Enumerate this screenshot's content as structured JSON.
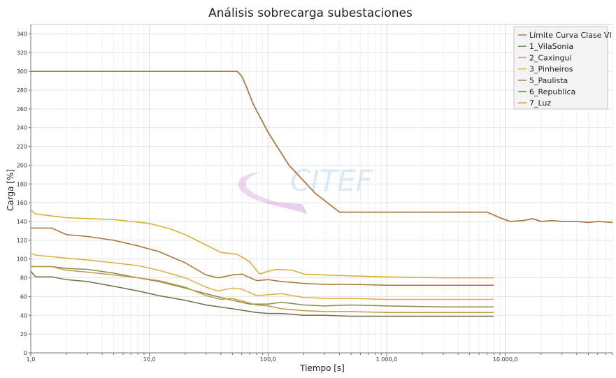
{
  "chart_data": {
    "type": "line",
    "title": "Análisis sobrecarga subestaciones",
    "xlabel": "Tiempo [s]",
    "ylabel": "Carga [%]",
    "x_scale": "log",
    "xlim": [
      1,
      80000
    ],
    "ylim": [
      0,
      350
    ],
    "x_ticks": [
      1,
      10,
      100,
      1000,
      10000
    ],
    "x_tick_labels": [
      "1,0",
      "10,0",
      "100,0",
      "1.000,0",
      "10.000,0"
    ],
    "y_ticks": [
      0,
      20,
      40,
      60,
      80,
      100,
      120,
      140,
      160,
      180,
      200,
      220,
      240,
      260,
      280,
      300,
      320,
      340
    ],
    "grid": true,
    "legend_position": "top-right",
    "watermark": "CITEF",
    "series": [
      {
        "name": "Límite Curva Clase VI",
        "color": "#b07a45",
        "points": [
          [
            1,
            300
          ],
          [
            5,
            300
          ],
          [
            20,
            300
          ],
          [
            55,
            300
          ],
          [
            60,
            295
          ],
          [
            65,
            285
          ],
          [
            75,
            265
          ],
          [
            100,
            235
          ],
          [
            150,
            200
          ],
          [
            250,
            170
          ],
          [
            400,
            150
          ],
          [
            1000,
            150
          ],
          [
            3000,
            150
          ],
          [
            7000,
            150
          ],
          [
            9000,
            144
          ],
          [
            11000,
            140
          ],
          [
            14000,
            141
          ],
          [
            17000,
            143
          ],
          [
            20000,
            140
          ],
          [
            25000,
            141
          ],
          [
            30000,
            140
          ],
          [
            40000,
            140
          ],
          [
            50000,
            139
          ],
          [
            60000,
            140
          ],
          [
            80000,
            139
          ]
        ]
      },
      {
        "name": "1_VilaSonia",
        "color": "#8a8a4e",
        "points": [
          [
            1,
            92
          ],
          [
            1.5,
            92
          ],
          [
            2,
            90
          ],
          [
            3,
            89
          ],
          [
            5,
            85
          ],
          [
            8,
            80
          ],
          [
            12,
            76
          ],
          [
            20,
            69
          ],
          [
            30,
            63
          ],
          [
            50,
            56
          ],
          [
            70,
            52
          ],
          [
            100,
            52
          ],
          [
            130,
            54
          ],
          [
            200,
            51
          ],
          [
            300,
            50
          ],
          [
            500,
            51
          ],
          [
            1000,
            50
          ],
          [
            3000,
            49
          ],
          [
            8000,
            49
          ]
        ]
      },
      {
        "name": "2_Caxingui",
        "color": "#d7ab2b",
        "points": [
          [
            1,
            152
          ],
          [
            1.1,
            148
          ],
          [
            2,
            144
          ],
          [
            5,
            142
          ],
          [
            10,
            138
          ],
          [
            15,
            132
          ],
          [
            20,
            126
          ],
          [
            30,
            115
          ],
          [
            40,
            107
          ],
          [
            55,
            105
          ],
          [
            70,
            97
          ],
          [
            85,
            84
          ],
          [
            100,
            87
          ],
          [
            120,
            89
          ],
          [
            160,
            88
          ],
          [
            200,
            84
          ],
          [
            300,
            83
          ],
          [
            500,
            82
          ],
          [
            1000,
            81
          ],
          [
            3000,
            80
          ],
          [
            8000,
            80
          ]
        ]
      },
      {
        "name": "3_Pinheiros",
        "color": "#d8b240",
        "points": [
          [
            1,
            106
          ],
          [
            1.1,
            104
          ],
          [
            2,
            101
          ],
          [
            3,
            99
          ],
          [
            5,
            96
          ],
          [
            8,
            93
          ],
          [
            12,
            88
          ],
          [
            20,
            80
          ],
          [
            30,
            70
          ],
          [
            38,
            66
          ],
          [
            50,
            69
          ],
          [
            60,
            68
          ],
          [
            80,
            61
          ],
          [
            100,
            62
          ],
          [
            130,
            63
          ],
          [
            200,
            59
          ],
          [
            300,
            58
          ],
          [
            500,
            58
          ],
          [
            1000,
            57
          ],
          [
            3000,
            57
          ],
          [
            8000,
            57
          ]
        ]
      },
      {
        "name": "5_Paulista",
        "color": "#a87433",
        "points": [
          [
            1,
            133
          ],
          [
            1.5,
            133
          ],
          [
            2,
            126
          ],
          [
            3,
            124
          ],
          [
            5,
            120
          ],
          [
            8,
            114
          ],
          [
            12,
            108
          ],
          [
            20,
            96
          ],
          [
            30,
            83
          ],
          [
            38,
            80
          ],
          [
            50,
            83
          ],
          [
            60,
            84
          ],
          [
            80,
            77
          ],
          [
            100,
            78
          ],
          [
            130,
            76
          ],
          [
            200,
            74
          ],
          [
            300,
            73
          ],
          [
            500,
            73
          ],
          [
            1000,
            72
          ],
          [
            3000,
            72
          ],
          [
            8000,
            72
          ]
        ]
      },
      {
        "name": "6_Republica",
        "color": "#6e6e48",
        "points": [
          [
            1,
            87
          ],
          [
            1.1,
            81
          ],
          [
            1.5,
            81
          ],
          [
            2,
            78
          ],
          [
            3,
            76
          ],
          [
            5,
            71
          ],
          [
            8,
            66
          ],
          [
            12,
            61
          ],
          [
            20,
            56
          ],
          [
            30,
            51
          ],
          [
            50,
            47
          ],
          [
            80,
            43
          ],
          [
            100,
            42
          ],
          [
            130,
            42
          ],
          [
            200,
            40
          ],
          [
            300,
            40
          ],
          [
            500,
            39
          ],
          [
            1000,
            39
          ],
          [
            3000,
            39
          ],
          [
            8000,
            39
          ]
        ]
      },
      {
        "name": "7_Luz",
        "color": "#c29a44",
        "points": [
          [
            1,
            92
          ],
          [
            1.5,
            92
          ],
          [
            2,
            88
          ],
          [
            3,
            86
          ],
          [
            5,
            83
          ],
          [
            8,
            80
          ],
          [
            12,
            77
          ],
          [
            20,
            70
          ],
          [
            30,
            61
          ],
          [
            40,
            57
          ],
          [
            50,
            58
          ],
          [
            80,
            51
          ],
          [
            100,
            50
          ],
          [
            130,
            47
          ],
          [
            200,
            45
          ],
          [
            300,
            44
          ],
          [
            500,
            44
          ],
          [
            1000,
            43
          ],
          [
            3000,
            43
          ],
          [
            8000,
            43
          ]
        ]
      }
    ]
  }
}
